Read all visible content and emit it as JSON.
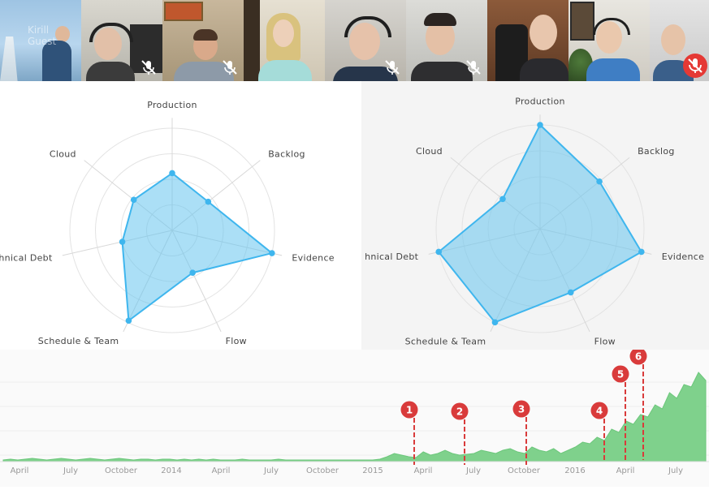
{
  "participants": [
    {
      "name": "Kirill",
      "role": "Guest",
      "muted": false,
      "mic_alert": false
    },
    {
      "muted": true,
      "mic_alert": false
    },
    {
      "muted": true,
      "mic_alert": false
    },
    {
      "muted": false,
      "mic_alert": false
    },
    {
      "muted": true,
      "mic_alert": false
    },
    {
      "muted": true,
      "mic_alert": false
    },
    {
      "muted": false,
      "mic_alert": false
    },
    {
      "muted": false,
      "mic_alert": false
    },
    {
      "muted": true,
      "mic_alert": true
    }
  ],
  "radar_left": {
    "axes": [
      "Production",
      "Backlog",
      "Evidence",
      "Flow",
      "Schedule & Team",
      "Technical Debt",
      "Cloud"
    ],
    "visible_labels": [
      "Production",
      "Backlog",
      "Evidence",
      "Flow",
      "Schedule & Team",
      "hnical Debt",
      "Cloud"
    ],
    "values": [
      0.56,
      0.45,
      1.0,
      0.46,
      0.98,
      0.5,
      0.48
    ]
  },
  "radar_right": {
    "axes": [
      "Production",
      "Backlog",
      "Evidence",
      "Flow",
      "Schedule & Team",
      "Technical Debt",
      "Cloud"
    ],
    "visible_labels": [
      "Production",
      "Backlog",
      "Evidence",
      "Flow",
      "Schedule & Team",
      "hnical Debt",
      "Cloud"
    ],
    "values": [
      1.0,
      0.73,
      1.0,
      0.68,
      1.0,
      1.0,
      0.46
    ]
  },
  "timeline": {
    "x_labels": [
      "April",
      "July",
      "October",
      "2014",
      "April",
      "July",
      "October",
      "2015",
      "April",
      "July",
      "October",
      "2016",
      "April",
      "July"
    ],
    "markers": [
      "1",
      "2",
      "3",
      "4",
      "5",
      "6"
    ],
    "accent_color": "#d93b3b",
    "area_color": "#7fd18c"
  },
  "chart_data": [
    {
      "type": "radar",
      "title": "",
      "categories": [
        "Production",
        "Backlog",
        "Evidence",
        "Flow",
        "Schedule & Team",
        "Technical Debt",
        "Cloud"
      ],
      "values": [
        0.56,
        0.45,
        1.0,
        0.46,
        0.98,
        0.5,
        0.48
      ],
      "grid": true
    },
    {
      "type": "radar",
      "title": "",
      "categories": [
        "Production",
        "Backlog",
        "Evidence",
        "Flow",
        "Schedule & Team",
        "Technical Debt",
        "Cloud"
      ],
      "values": [
        1.0,
        0.73,
        1.0,
        0.68,
        1.0,
        1.0,
        0.46
      ],
      "grid": true
    },
    {
      "type": "area",
      "x_tick_labels": [
        "April",
        "July",
        "October",
        "2014",
        "April",
        "July",
        "October",
        "2015",
        "April",
        "July",
        "October",
        "2016",
        "April",
        "July"
      ],
      "annotations": [
        "1",
        "2",
        "3",
        "4",
        "5",
        "6"
      ],
      "series": [
        {
          "values": [
            2,
            3,
            2,
            3,
            4,
            3,
            2,
            3,
            4,
            3,
            2,
            3,
            4,
            3,
            2,
            3,
            4,
            3,
            2,
            3,
            3,
            2,
            3,
            3,
            2,
            3,
            2,
            3,
            2,
            3,
            2,
            2,
            2,
            3,
            2,
            2,
            2,
            2,
            3,
            2,
            2,
            2,
            2,
            2,
            2,
            2,
            2,
            2,
            2,
            2,
            2,
            2,
            3,
            6,
            10,
            8,
            6,
            5,
            12,
            8,
            10,
            14,
            10,
            8,
            9,
            10,
            14,
            12,
            10,
            14,
            16,
            12,
            10,
            18,
            14,
            12,
            16,
            10,
            14,
            18,
            24,
            22,
            30,
            26,
            40,
            36,
            50,
            46,
            58,
            55,
            70,
            65,
            85,
            78,
            95,
            92,
            110,
            100
          ]
        }
      ]
    }
  ]
}
